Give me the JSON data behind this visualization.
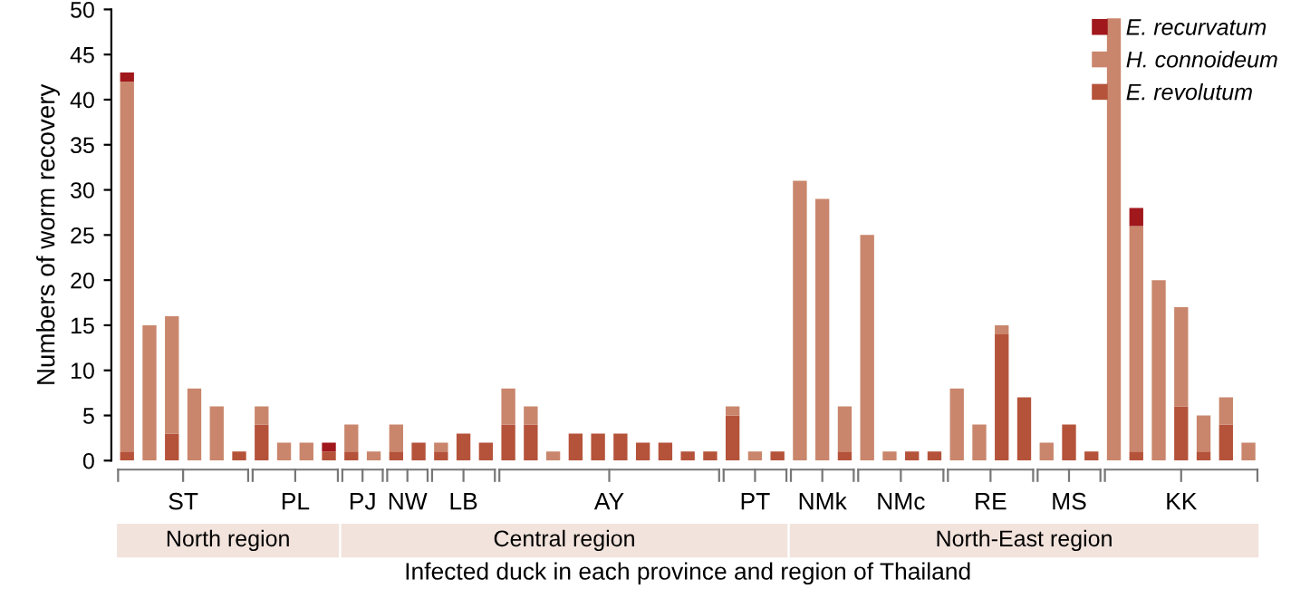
{
  "chart_data": {
    "type": "bar",
    "stacked": true,
    "ylabel": "Numbers of worm recovery",
    "xlabel": "Infected duck in each province and region of Thailand",
    "categories": [
      null,
      null,
      "ST",
      null,
      null,
      null,
      null,
      "PL",
      null,
      null,
      "PJ",
      null,
      "NW",
      null,
      null,
      "LB",
      null,
      null,
      null,
      null,
      null,
      "AY",
      null,
      null,
      null,
      null,
      null,
      null,
      "PT",
      null,
      null,
      "NMk",
      null,
      null,
      "NMc",
      null,
      null,
      null,
      "RE",
      null,
      null,
      null,
      "MS",
      null,
      null,
      null,
      null,
      "KK",
      null,
      null,
      null
    ],
    "series": [
      {
        "name": "E. revolutum",
        "color": "#b5533a",
        "values": [
          1,
          0,
          3,
          0,
          0,
          1,
          4,
          0,
          0,
          1,
          1,
          0,
          1,
          2,
          1,
          3,
          2,
          4,
          4,
          0,
          3,
          3,
          3,
          2,
          2,
          1,
          1,
          5,
          0,
          1,
          0,
          0,
          1,
          0,
          0,
          1,
          1,
          0,
          0,
          14,
          7,
          0,
          4,
          1,
          0,
          1,
          0,
          6,
          1,
          4,
          0
        ]
      },
      {
        "name": "H. connoideum",
        "color": "#c9866c",
        "values": [
          41,
          15,
          13,
          8,
          6,
          0,
          2,
          2,
          2,
          0,
          3,
          1,
          3,
          0,
          1,
          0,
          0,
          4,
          2,
          1,
          0,
          0,
          0,
          0,
          0,
          0,
          0,
          1,
          1,
          0,
          31,
          29,
          5,
          25,
          1,
          0,
          0,
          8,
          4,
          1,
          0,
          2,
          0,
          0,
          49,
          25,
          20,
          11,
          4,
          3,
          2
        ]
      },
      {
        "name": "E. recurvatum",
        "color": "#a0181c",
        "values": [
          1,
          0,
          0,
          0,
          0,
          0,
          0,
          0,
          0,
          1,
          0,
          0,
          0,
          0,
          0,
          0,
          0,
          0,
          0,
          0,
          0,
          0,
          0,
          0,
          0,
          0,
          0,
          0,
          0,
          0,
          0,
          0,
          0,
          0,
          0,
          0,
          0,
          0,
          0,
          0,
          0,
          0,
          0,
          0,
          0,
          2,
          0,
          0,
          0,
          0,
          0
        ]
      }
    ],
    "ylim": [
      0,
      50
    ],
    "yticks": [
      0,
      5,
      10,
      15,
      20,
      25,
      30,
      35,
      40,
      45,
      50
    ],
    "legend": "top right",
    "grid": false,
    "annotations": [
      "North region",
      "Central region",
      "North-East region"
    ]
  }
}
